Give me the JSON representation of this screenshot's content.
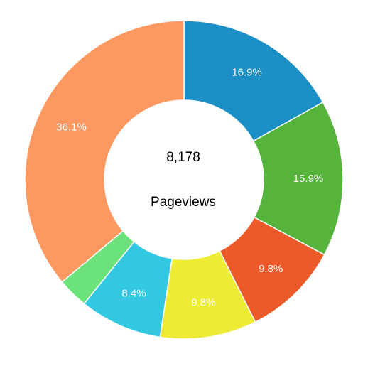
{
  "chart_data": {
    "type": "pie",
    "donut": true,
    "center": {
      "value": "8,178",
      "label": "Pageviews"
    },
    "slices": [
      {
        "value": 16.9,
        "label": "16.9%",
        "color": "#1b8fc6"
      },
      {
        "value": 15.9,
        "label": "15.9%",
        "color": "#56b33c"
      },
      {
        "value": 9.8,
        "label": "9.8%",
        "color": "#ec5a2a"
      },
      {
        "value": 9.8,
        "label": "9.8%",
        "color": "#edeb33"
      },
      {
        "value": 8.4,
        "label": "8.4%",
        "color": "#33c8e2"
      },
      {
        "value": 3.1,
        "label": "",
        "color": "#6be27a"
      },
      {
        "value": 36.1,
        "label": "36.1%",
        "color": "#fd9860"
      }
    ],
    "legend": "none"
  }
}
